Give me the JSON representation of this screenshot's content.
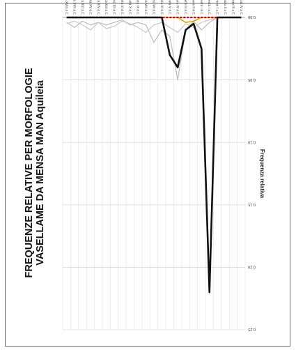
{
  "chart_data": {
    "type": "line",
    "title_line1": "FREQUENZE RELATIVE PER MORFOLOGIE",
    "title_line2": "VASELLAME DA MENSA MAN Aquileia",
    "ylabel": "Frequenza relativa",
    "ylim": [
      0,
      0.25
    ],
    "y_ticks": [
      "0.00",
      "0.05",
      "0.10",
      "0.15",
      "0.20",
      "0.25"
    ],
    "categories": [
      "inizio IV a.C.",
      "inizio III a.C.",
      "inizio II a.C.",
      "inizio I a.C.",
      "I metà I a.C.",
      "I metà I d.C.",
      "I metà II d.C.",
      "I metà III d.C.",
      "I metà IV d.C.",
      "I metà V d.C.",
      "I metà VI d.C.",
      "I metà VII d.C.",
      "I metà VIII d.C.",
      "I metà IX d.C.",
      "I metà X d.C.",
      "I metà XI d.C.",
      "I metà XII d.C.",
      "I metà XIII d.C.",
      "I metà XIV d.C.",
      "I metà XV d.C.",
      "I metà XVI d.C.",
      "I metà XVII d.C.",
      "I metà XVIII d.C."
    ],
    "series": [
      {
        "color": "#111111",
        "values": [
          0,
          0,
          0,
          0,
          0.22,
          0.025,
          0.005,
          0.01,
          0.04,
          0.03,
          0.0,
          0,
          0,
          0,
          0,
          0,
          0,
          0,
          0,
          0,
          0,
          0,
          0
        ]
      },
      {
        "color": "#bbbbbb",
        "values": [
          0,
          0,
          0,
          0,
          0.004,
          0.01,
          0.003,
          0.01,
          0.05,
          0.015,
          0.01,
          0.02,
          0.006,
          0.004,
          0.006,
          0.002,
          0.004,
          0.006,
          0.004,
          0.006,
          0.003,
          0.008,
          0.004
        ]
      },
      {
        "color": "#c8c8c8",
        "values": [
          0,
          0,
          0,
          0,
          0.002,
          0.004,
          0.008,
          0.005,
          0.012,
          0.008,
          0.004,
          0.006,
          0.012,
          0.008,
          0.005,
          0.003,
          0.007,
          0.009,
          0.004,
          0.01,
          0.006,
          0.003,
          0.005
        ]
      },
      {
        "color": "#cc0000",
        "values": [
          0,
          0,
          0,
          0,
          0,
          0,
          0,
          0,
          0,
          0,
          0,
          0,
          0,
          0,
          0,
          0,
          0,
          0,
          0,
          0,
          0,
          0,
          0
        ]
      },
      {
        "color": "#1f3a7a",
        "values": [
          0,
          0,
          0,
          0,
          0,
          0,
          0,
          0,
          0,
          0,
          0,
          0,
          0,
          0,
          0,
          0,
          0,
          0,
          0,
          0,
          0,
          0,
          0
        ]
      },
      {
        "color": "#e8a200",
        "values": [
          0,
          0,
          0,
          0,
          0,
          0,
          0.003,
          0.004,
          0,
          0,
          0,
          0,
          0,
          0,
          0,
          0,
          0,
          0,
          0,
          0,
          0,
          0,
          0
        ]
      }
    ]
  }
}
